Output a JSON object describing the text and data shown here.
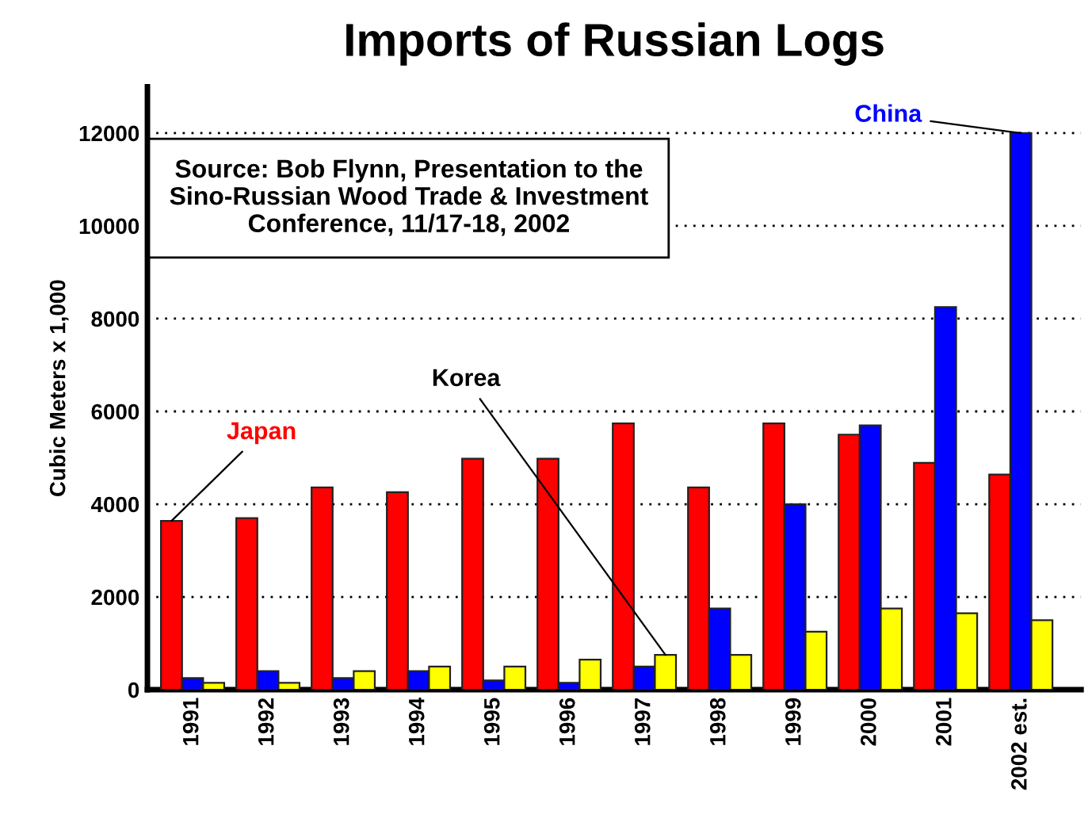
{
  "chart_data": {
    "type": "bar",
    "title": "Imports of Russian Logs",
    "ylabel": "Cubic Meters x 1,000",
    "categories": [
      "1991",
      "1992",
      "1993",
      "1994",
      "1995",
      "1996",
      "1997",
      "1998",
      "1999",
      "2000",
      "2001",
      "2002 est."
    ],
    "series": [
      {
        "name": "Japan",
        "color": "#ff0000",
        "values": [
          3640,
          3700,
          4360,
          4260,
          4980,
          4980,
          5740,
          4360,
          5740,
          5500,
          4890,
          4640
        ]
      },
      {
        "name": "China",
        "color": "#0000ff",
        "values": [
          250,
          400,
          250,
          400,
          200,
          150,
          500,
          1750,
          4000,
          5700,
          8250,
          12000
        ]
      },
      {
        "name": "Korea",
        "color": "#ffff00",
        "values": [
          150,
          150,
          400,
          500,
          500,
          650,
          750,
          750,
          1250,
          1750,
          1650,
          1500
        ]
      }
    ],
    "ylim": [
      0,
      13000
    ],
    "yticks": [
      0,
      2000,
      4000,
      6000,
      8000,
      10000,
      12000
    ],
    "grid": "y",
    "legend": false,
    "annotations": [
      "Source: Bob Flynn, Presentation to the Sino-Russian Wood Trade & Investment Conference, 11/17-18, 2002"
    ]
  }
}
